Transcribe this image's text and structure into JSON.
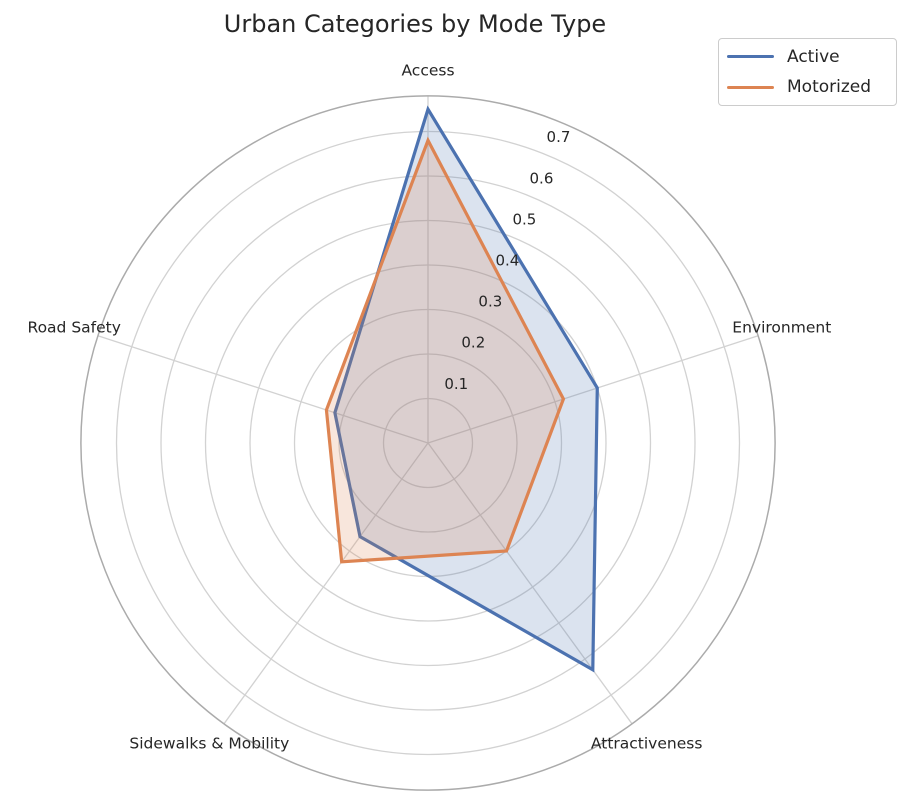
{
  "chart_data": {
    "type": "radar",
    "title": "Urban Categories by Mode Type",
    "categories": [
      "Access",
      "Environment",
      "Attractiveness",
      "Sidewalks & Mobility",
      "Road Safety"
    ],
    "series": [
      {
        "name": "Active",
        "color": "#4C72B0",
        "values": [
          0.75,
          0.4,
          0.63,
          0.26,
          0.22
        ]
      },
      {
        "name": "Motorized",
        "color": "#DD8452",
        "values": [
          0.68,
          0.32,
          0.3,
          0.33,
          0.24
        ]
      }
    ],
    "r_ticks": [
      0.1,
      0.2,
      0.3,
      0.4,
      0.5,
      0.6,
      0.7
    ],
    "r_tick_labels": [
      "0.1",
      "0.2",
      "0.3",
      "0.4",
      "0.5",
      "0.6",
      "0.7"
    ],
    "r_max": 0.78,
    "r_label_angle_deg": 67.5,
    "start_angle_deg": 90,
    "direction": "clockwise",
    "grid": true,
    "fill_opacity": 0.2,
    "legend": {
      "position": "upper right",
      "entries": [
        "Active",
        "Motorized"
      ]
    }
  },
  "colors": {
    "grid": "#d2d2d2",
    "spine": "#ababab",
    "text": "#262626",
    "background": "#ffffff",
    "legend_border": "#cccccc"
  }
}
